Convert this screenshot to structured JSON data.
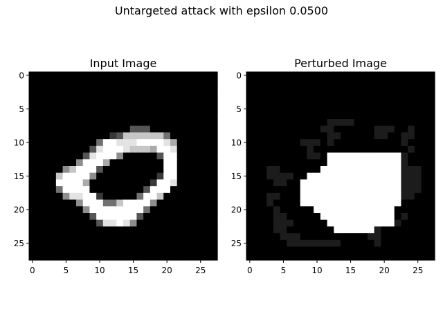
{
  "suptitle": "Untargeted attack with epsilon 0.0500",
  "chart_data": [
    {
      "type": "heatmap",
      "title": "Input Image",
      "colormap": "gray",
      "xlim": [
        -0.5,
        27.5
      ],
      "ylim": [
        27.5,
        -0.5
      ],
      "xticks": [
        0,
        5,
        10,
        15,
        20,
        25
      ],
      "yticks": [
        0,
        5,
        10,
        15,
        20,
        25
      ],
      "grid": false,
      "rows": [
        "0000000000000000000000000000",
        "0000000000000000000000000000",
        "0000000000000000000000000000",
        "0000000000000000000000000000",
        "0000000000000000000000000000",
        "0000000000000000000000000000",
        "0000000000000000000000000000",
        "0000000000000000000000000000",
        "0000000000000003330000000000",
        "0000000000002377777740000000",
        "0000000000499888999986000000",
        "0000000003899987776998000000",
        "0000000038999500000399000000",
        "0000000599960000000099000000",
        "0000057999300000000099000000",
        "0000799995000000000299000000",
        "0000999960000000002998000000",
        "0000499990000000039990000000",
        "0000058899200000499700000000",
        "0000000599944799995000000000",
        "0000000059999999940000000000",
        "0000000003999999300000000000",
        "0000000000388985000000000000",
        "0000000000000000000000000000",
        "0000000000000000000000000000",
        "0000000000000000000000000000",
        "0000000000000000000000000000",
        "0000000000000000000000000000"
      ]
    },
    {
      "type": "heatmap",
      "title": "Perturbed Image",
      "colormap": "gray",
      "xlim": [
        -0.5,
        27.5
      ],
      "ylim": [
        27.5,
        -0.5
      ],
      "xticks": [
        0,
        5,
        10,
        15,
        20,
        25
      ],
      "yticks": [
        0,
        5,
        10,
        15,
        20,
        25
      ],
      "grid": false,
      "rows": [
        "0000000000000000000000000000",
        "0000000000000000000000000000",
        "0000000000000000000000000000",
        "0000000000000000000000000000",
        "0000000000000000000000000000",
        "0000000000000000000000000000",
        "0000000000000000000000000000",
        "0000000000001111000000000000",
        "0000000000011000000111001000",
        "0000000000001100000110011000",
        "0000000011101000000000010000",
        "0000000001000000000000001000",
        "0000000001109999999999910000",
        "0000000000009999999999910000",
        "0001100000099999999999911100",
        "0001111009999999999999911100",
        "0000110099999999999999911100",
        "0000000099999999999999911100",
        "0001100099999999999999911000",
        "0001000099999999999999900000",
        "0000100000999999999999000000",
        "0000110000099999999999010000",
        "0000111000009999999999100000",
        "0000110000000999999100000000",
        "0000011100000000001100000000",
        "0000001111111100000100000000",
        "0000000000000000000000000000",
        "0000000000000000000000000000"
      ]
    }
  ]
}
